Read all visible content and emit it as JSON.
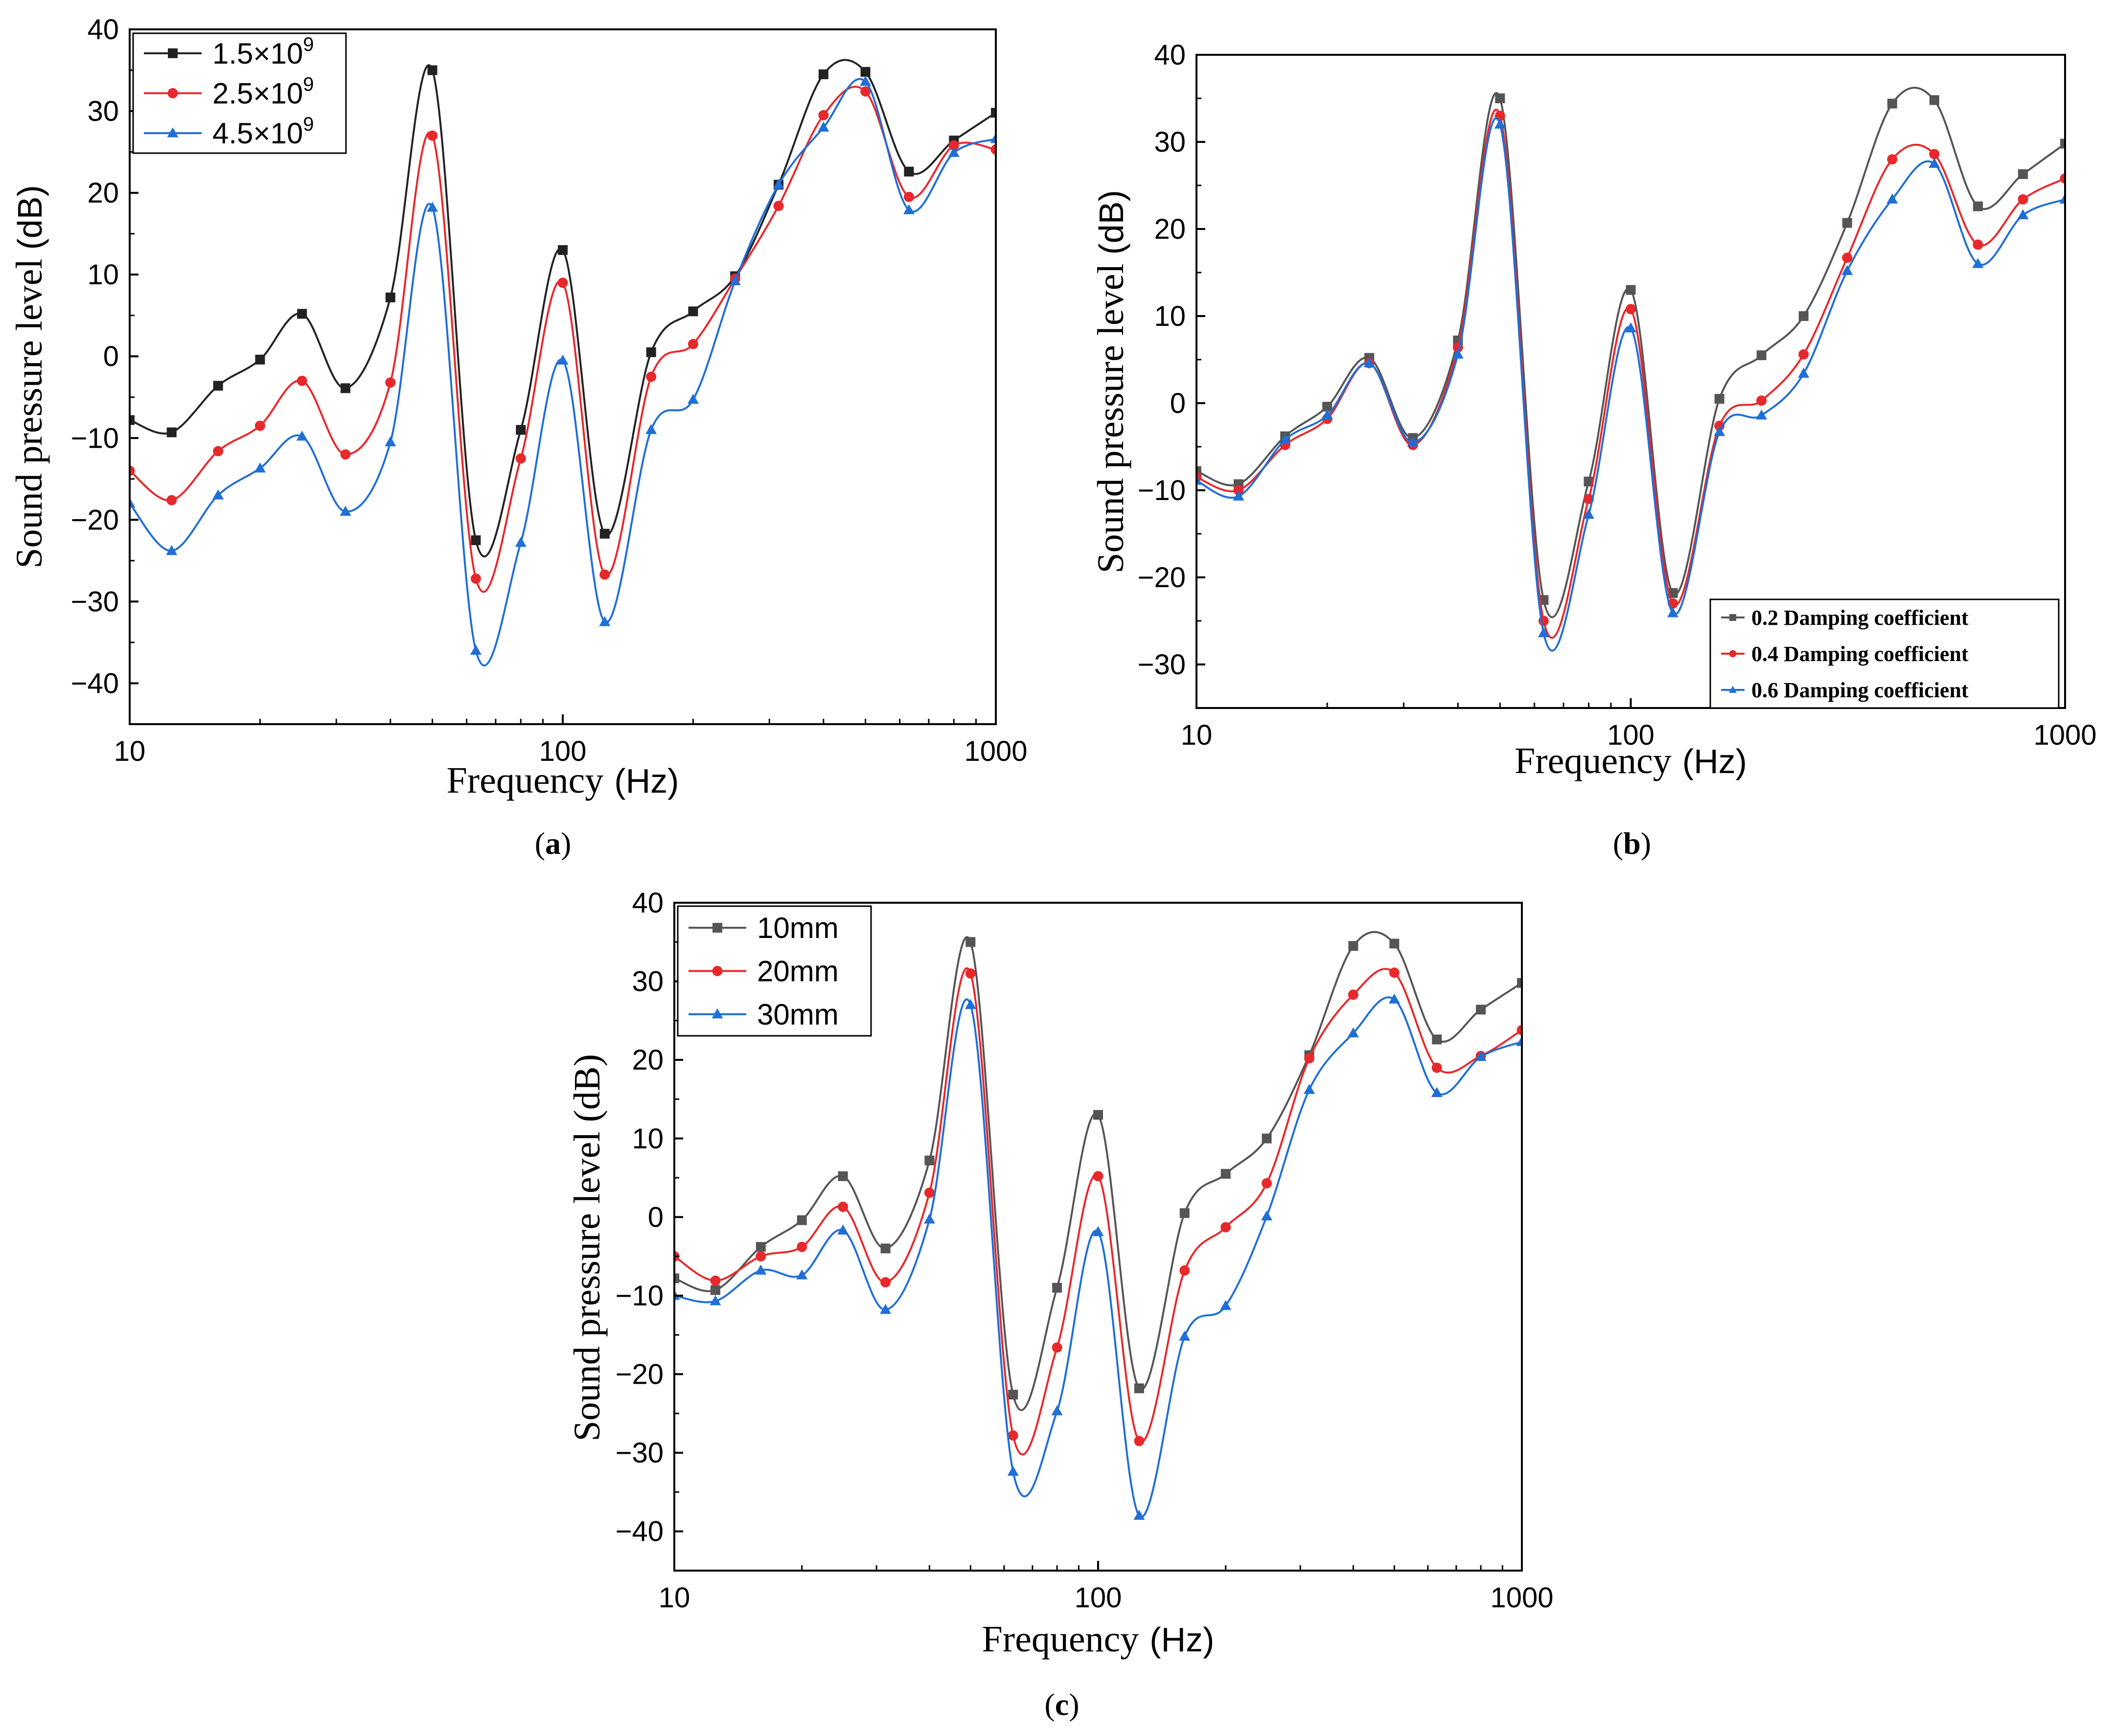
{
  "chart_data": [
    {
      "id": "a",
      "type": "line",
      "panel_label": "a",
      "xlabel": "Frequency",
      "xunit": "(Hz)",
      "ylabel": "Sound pressure level",
      "yunit": "(dB)",
      "xscale": "log",
      "xlim": [
        10,
        1000
      ],
      "ylim": [
        -45,
        40
      ],
      "yticks": [
        -40,
        -30,
        -20,
        -10,
        0,
        10,
        20,
        30,
        40
      ],
      "ytick_labels": [
        "−40",
        "−30",
        "−20",
        "−10",
        "0",
        "10",
        "20",
        "30",
        "40"
      ],
      "xticks": [
        10,
        100,
        1000
      ],
      "xtick_labels": [
        "10",
        "100",
        "1000"
      ],
      "legend_position": "top-left",
      "x": [
        10,
        12.5,
        16,
        20,
        25,
        31.5,
        40,
        50,
        63,
        80,
        100,
        125,
        160,
        200,
        250,
        315,
        400,
        500,
        630,
        800,
        1000
      ],
      "series": [
        {
          "name": "1.5×10",
          "sup": "9",
          "color": "#222222",
          "marker": "square",
          "values": [
            -7.8,
            -9.3,
            -3.6,
            -0.4,
            5.2,
            -3.9,
            7.2,
            35,
            -22.5,
            -9,
            13,
            -21.7,
            0.5,
            5.5,
            9.8,
            21,
            34.5,
            34.8,
            22.6,
            26.4,
            29.8
          ]
        },
        {
          "name": "2.5×10",
          "sup": "9",
          "color": "#e8282b",
          "marker": "circle",
          "values": [
            -14,
            -17.6,
            -11.6,
            -8.5,
            -3,
            -12,
            -3.2,
            27,
            -27.2,
            -12.5,
            9,
            -26.7,
            -2.5,
            1.5,
            9.5,
            18.4,
            29.5,
            32.4,
            19.5,
            25.8,
            25.3
          ]
        },
        {
          "name": "4.5×10",
          "sup": "9",
          "color": "#1f6fd6",
          "marker": "triangle",
          "values": [
            -18,
            -23.8,
            -17,
            -13.7,
            -9.8,
            -19,
            -10.5,
            18.2,
            -36,
            -22.8,
            -0.5,
            -32.5,
            -9,
            -5.3,
            9.2,
            21,
            28,
            33.6,
            17.9,
            24.9,
            26.6
          ]
        }
      ]
    },
    {
      "id": "b",
      "type": "line",
      "panel_label": "b",
      "xlabel": "Frequency",
      "xunit": "(Hz)",
      "ylabel": "Sound pressure level",
      "yunit": "(dB)",
      "xscale": "log",
      "xlim": [
        10,
        1000
      ],
      "ylim": [
        -35,
        40
      ],
      "yticks": [
        -30,
        -20,
        -10,
        0,
        10,
        20,
        30,
        40
      ],
      "ytick_labels": [
        "−30",
        "−20",
        "−10",
        "0",
        "10",
        "20",
        "30",
        "40"
      ],
      "xticks": [
        10,
        100,
        1000
      ],
      "xtick_labels": [
        "10",
        "100",
        "1000"
      ],
      "legend_position": "bottom-right",
      "x": [
        10,
        12.5,
        16,
        20,
        25,
        31.5,
        40,
        50,
        63,
        80,
        100,
        125,
        160,
        200,
        250,
        315,
        400,
        500,
        630,
        800,
        1000
      ],
      "series": [
        {
          "name": "0.2 Damping coefficient",
          "color": "#555555",
          "marker": "square",
          "values": [
            -7.8,
            -9.3,
            -3.8,
            -0.4,
            5.2,
            -4,
            7.2,
            35,
            -22.6,
            -9,
            13,
            -21.8,
            0.5,
            5.5,
            10,
            20.7,
            34.4,
            34.8,
            22.6,
            26.3,
            29.8
          ]
        },
        {
          "name": "0.4 Damping coefficient",
          "color": "#e8282b",
          "marker": "circle",
          "values": [
            -8.5,
            -10,
            -4.8,
            -1.8,
            4.6,
            -4.8,
            6.4,
            33,
            -25,
            -11,
            10.8,
            -23,
            -2.6,
            0.3,
            5.6,
            16.7,
            28,
            28.6,
            18.2,
            23.4,
            25.8
          ]
        },
        {
          "name": "0.6 Damping coefficient",
          "color": "#1f6fd6",
          "marker": "triangle",
          "values": [
            -8.9,
            -10.7,
            -4.2,
            -1.4,
            4.6,
            -4.5,
            5.6,
            32,
            -26.4,
            -12.8,
            8.6,
            -24.1,
            -3.3,
            -1.4,
            3.4,
            15.2,
            23.4,
            27.5,
            16,
            21.6,
            23.4
          ]
        }
      ]
    },
    {
      "id": "c",
      "type": "line",
      "panel_label": "c",
      "xlabel": "Frequency",
      "xunit": "(Hz)",
      "ylabel": "Sound pressure level (dB)",
      "xscale": "log",
      "xlim": [
        10,
        1000
      ],
      "ylim": [
        -45,
        40
      ],
      "yticks": [
        -40,
        -30,
        -20,
        -10,
        0,
        10,
        20,
        30,
        40
      ],
      "ytick_labels": [
        "−40",
        "−30",
        "−20",
        "−10",
        "0",
        "10",
        "20",
        "30",
        "40"
      ],
      "xticks": [
        10,
        100,
        1000
      ],
      "xtick_labels": [
        "10",
        "100",
        "1000"
      ],
      "legend_position": "top-left",
      "x": [
        10,
        12.5,
        16,
        20,
        25,
        31.5,
        40,
        50,
        63,
        80,
        100,
        125,
        160,
        200,
        250,
        315,
        400,
        500,
        630,
        800,
        1000
      ],
      "series": [
        {
          "name": "10mm",
          "color": "#555555",
          "marker": "square",
          "values": [
            -7.8,
            -9.3,
            -3.8,
            -0.4,
            5.2,
            -4,
            7.2,
            35,
            -22.6,
            -9,
            13,
            -21.8,
            0.5,
            5.5,
            10,
            20.6,
            34.5,
            34.8,
            22.6,
            26.4,
            29.8
          ]
        },
        {
          "name": "20mm",
          "color": "#e8282b",
          "marker": "circle",
          "values": [
            -5,
            -8.1,
            -5,
            -3.8,
            1.3,
            -8.3,
            3.1,
            31,
            -27.8,
            -16.6,
            5.2,
            -28.5,
            -6.8,
            -1.3,
            4.3,
            20.2,
            28.3,
            31.1,
            19,
            20.5,
            23.8
          ]
        },
        {
          "name": "30mm",
          "color": "#1f6fd6",
          "marker": "triangle",
          "values": [
            -10,
            -10.7,
            -6.8,
            -7.4,
            -1.7,
            -11.8,
            -0.3,
            27,
            -32.4,
            -24.7,
            -1.9,
            -38,
            -15.2,
            -11.3,
            0.1,
            16.2,
            23.4,
            27.7,
            15.8,
            20.4,
            22.3
          ]
        }
      ]
    }
  ]
}
